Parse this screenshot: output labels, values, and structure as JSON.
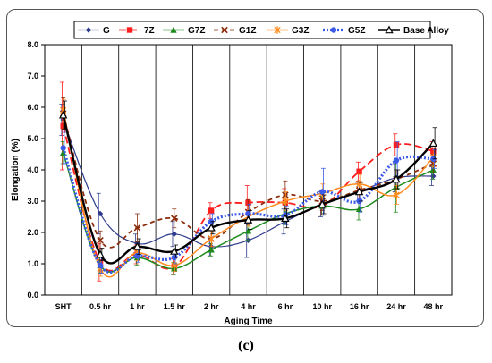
{
  "chart_data": {
    "type": "line",
    "xlabel": "Aging Time",
    "ylabel": "Elongation (%)",
    "ylim": [
      0,
      8
    ],
    "yticks": [
      "0.0",
      "1.0",
      "2.0",
      "3.0",
      "4.0",
      "5.0",
      "6.0",
      "7.0",
      "8.0"
    ],
    "categories": [
      "SHT",
      "0.5 hr",
      "1 hr",
      "1.5 hr",
      "2 hr",
      "4 hr",
      "6 hr",
      "10 hr",
      "16 hr",
      "24 hr",
      "48 hr"
    ],
    "grid": "vertical",
    "legend_position": "top",
    "series": [
      {
        "name": "G",
        "color": "#2e3a8c",
        "dash": "",
        "width": 1.2,
        "marker": "diamond",
        "values": [
          5.6,
          2.6,
          1.65,
          1.95,
          1.55,
          1.75,
          2.35,
          2.9,
          3.3,
          3.75,
          3.8
        ],
        "errors": [
          0.5,
          0.65,
          0.3,
          0.4,
          0.3,
          0.55,
          0.4,
          0.4,
          0.3,
          0.45,
          0.3
        ]
      },
      {
        "name": "7Z",
        "color": "#ff1e1e",
        "dash": "8,4",
        "width": 1.8,
        "marker": "square",
        "values": [
          5.4,
          1.05,
          1.3,
          0.9,
          2.7,
          2.95,
          2.95,
          2.85,
          3.95,
          4.8,
          4.6
        ],
        "errors": [
          1.4,
          0.6,
          0.3,
          0.25,
          0.25,
          0.55,
          0.45,
          0.3,
          0.3,
          0.35,
          0.3
        ]
      },
      {
        "name": "G7Z",
        "color": "#1e8a1e",
        "dash": "",
        "width": 1.5,
        "marker": "triangle",
        "values": [
          4.55,
          0.95,
          1.2,
          0.85,
          1.45,
          2.05,
          2.6,
          2.85,
          2.75,
          3.45,
          4.0
        ],
        "errors": [
          0.35,
          0.25,
          0.25,
          0.2,
          0.2,
          0.3,
          0.35,
          0.3,
          0.35,
          0.8,
          0.3
        ]
      },
      {
        "name": "G1Z",
        "color": "#8b2d0c",
        "dash": "5,4",
        "width": 1.8,
        "marker": "x",
        "values": [
          5.8,
          1.75,
          2.15,
          2.45,
          1.8,
          2.65,
          3.2,
          3.0,
          3.35,
          3.7,
          4.2
        ],
        "errors": [
          0.5,
          0.3,
          0.45,
          0.3,
          0.25,
          0.4,
          0.45,
          0.3,
          0.3,
          0.3,
          0.3
        ]
      },
      {
        "name": "G3Z",
        "color": "#ff8a1e",
        "dash": "",
        "width": 1.5,
        "marker": "asterisk",
        "values": [
          5.9,
          0.85,
          1.35,
          0.95,
          1.8,
          2.5,
          3.0,
          3.25,
          3.55,
          3.2,
          4.4
        ],
        "errors": [
          0.35,
          0.25,
          0.25,
          0.2,
          0.25,
          0.3,
          0.3,
          0.3,
          0.3,
          0.3,
          0.3
        ]
      },
      {
        "name": "G5Z",
        "color": "#3c5ae8",
        "dash": "2,2",
        "width": 3.2,
        "marker": "circle",
        "values": [
          4.7,
          0.95,
          1.25,
          1.2,
          2.35,
          2.6,
          2.55,
          3.3,
          3.0,
          4.3,
          4.35
        ],
        "errors": [
          0.5,
          0.25,
          0.2,
          0.2,
          0.25,
          0.3,
          0.3,
          0.75,
          0.35,
          0.6,
          0.3
        ]
      },
      {
        "name": "Base Alloy",
        "color": "#000000",
        "dash": "",
        "width": 2.4,
        "marker": "open-triangle",
        "values": [
          5.75,
          1.3,
          1.55,
          1.4,
          2.15,
          2.4,
          2.45,
          2.9,
          3.3,
          3.7,
          4.85
        ],
        "errors": [
          0.45,
          0.2,
          0.25,
          0.2,
          0.2,
          0.3,
          0.3,
          0.3,
          0.3,
          0.3,
          0.5
        ]
      }
    ]
  },
  "panel_label": "(c)"
}
